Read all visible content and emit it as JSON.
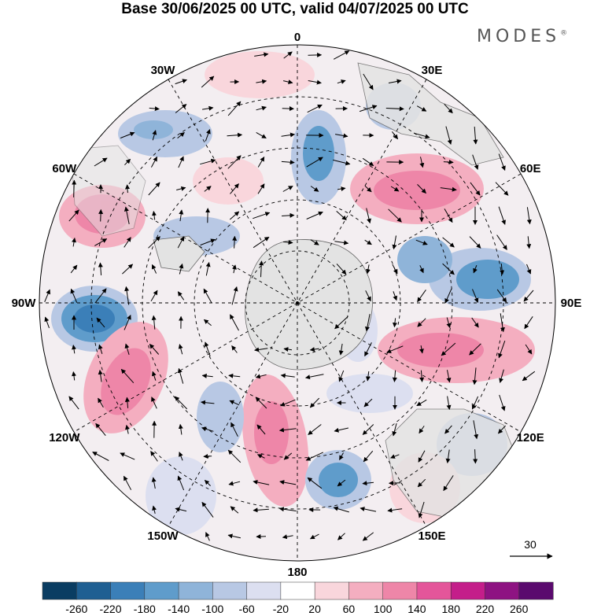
{
  "title": "Base 30/06/2025 00 UTC, valid 04/07/2025 00 UTC",
  "brand": {
    "text": "MODES",
    "mark": "®"
  },
  "longitude_labels": [
    {
      "text": "0",
      "lon": 0
    },
    {
      "text": "30E",
      "lon": 30
    },
    {
      "text": "60E",
      "lon": 60
    },
    {
      "text": "90E",
      "lon": 90
    },
    {
      "text": "120E",
      "lon": 120
    },
    {
      "text": "150E",
      "lon": 150
    },
    {
      "text": "180",
      "lon": 180
    },
    {
      "text": "150W",
      "lon": -150
    },
    {
      "text": "120W",
      "lon": -120
    },
    {
      "text": "90W",
      "lon": -90
    },
    {
      "text": "60W",
      "lon": -60
    },
    {
      "text": "30W",
      "lon": -30
    }
  ],
  "vector_reference": {
    "label": "30"
  },
  "colorbar": {
    "labels": [
      "-260",
      "-220",
      "-180",
      "-140",
      "-100",
      "-60",
      "-20",
      "20",
      "60",
      "100",
      "140",
      "180",
      "220",
      "260"
    ],
    "colors": [
      "#0a3d62",
      "#1f5f92",
      "#3b7fb8",
      "#5f9ccb",
      "#8fb4d9",
      "#b8c8e4",
      "#dcdff0",
      "#ffffff",
      "#f9d6dc",
      "#f4aec0",
      "#ee86a8",
      "#e4559a",
      "#c41e8a",
      "#8e1382",
      "#5a0a6e"
    ]
  },
  "colors": {
    "land": "#e3e3e3",
    "coast": "#666666",
    "grid": "#000000"
  }
}
